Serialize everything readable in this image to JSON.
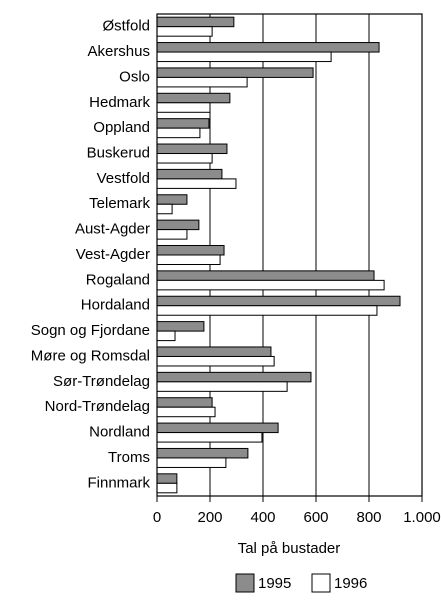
{
  "chart_data": {
    "type": "hbar",
    "categories": [
      "Østfold",
      "Akershus",
      "Oslo",
      "Hedmark",
      "Oppland",
      "Buskerud",
      "Vestfold",
      "Telemark",
      "Aust-Agder",
      "Vest-Agder",
      "Rogaland",
      "Hordaland",
      "Sogn og Fjordane",
      "Møre og Romsdal",
      "Sør-Trøndelag",
      "Nord-Trøndelag",
      "Nordland",
      "Troms",
      "Finnmark"
    ],
    "series": [
      {
        "name": "1995",
        "color": "#8c8c8c",
        "values": [
          290,
          838,
          589,
          275,
          196,
          264,
          245,
          113,
          158,
          253,
          819,
          917,
          177,
          430,
          581,
          208,
          457,
          343,
          75
        ]
      },
      {
        "name": "1996",
        "color": "#ffffff",
        "values": [
          208,
          657,
          340,
          200,
          162,
          208,
          298,
          57,
          113,
          238,
          857,
          830,
          68,
          442,
          491,
          219,
          396,
          260,
          75
        ]
      }
    ],
    "xlabel": "Tal på bustader",
    "xlim": [
      0,
      1000
    ],
    "xticks": [
      0,
      200,
      400,
      600,
      800,
      {
        "value": 1000,
        "label": "1.000"
      }
    ],
    "grid": true,
    "legend": "bottom"
  }
}
